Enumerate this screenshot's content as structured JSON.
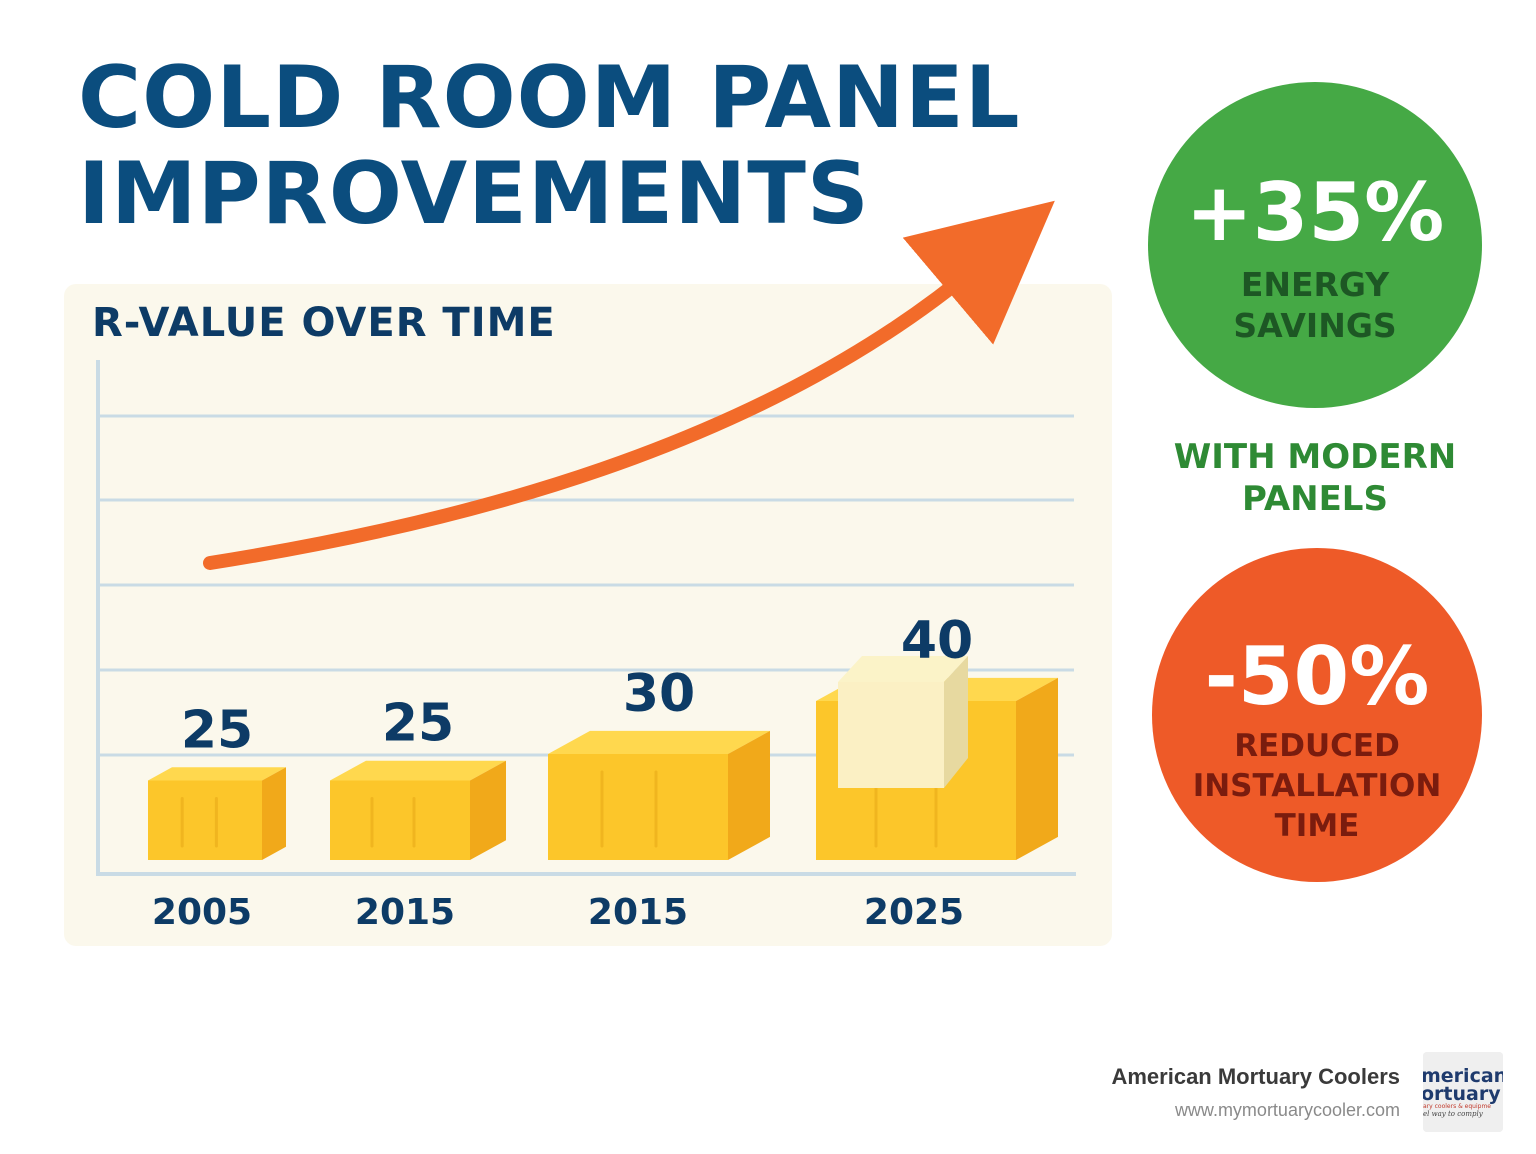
{
  "header": {
    "title_line1": "COLD ROOM PANEL",
    "title_line2": "IMPROVEMENTS"
  },
  "chart_data": {
    "type": "bar",
    "title": "R-VALUE OVER TIME",
    "categories": [
      "2005",
      "2015",
      "2015",
      "2025"
    ],
    "values": [
      25,
      25,
      30,
      40
    ],
    "data_labels": [
      "25",
      "25",
      "30",
      "40"
    ],
    "xlabel": "",
    "ylabel": "",
    "grid": true,
    "trend_arrow": "upward",
    "colors": {
      "bar": "#fcc62a",
      "bar_side": "#f1a91a",
      "bar_top": "#ffd84e",
      "arrow": "#f26b2a",
      "label": "#0d3b66"
    }
  },
  "stats": {
    "energy": {
      "value": "+35%",
      "line1": "ENERGY",
      "line2": "SAVINGS"
    },
    "note": {
      "line1": "WITH MODERN",
      "line2": "PANELS"
    },
    "installation": {
      "value": "-50%",
      "line1": "REDUCED",
      "line2": "INSTALLATION",
      "line3": "TIME"
    }
  },
  "brand": {
    "name": "American Mortuary Coolers",
    "url": "www.mymortuarycooler.com",
    "logo": {
      "line1": "merican",
      "line2": "ortuary",
      "line3": "ary coolers & equipme",
      "line4": "el way to comply"
    }
  },
  "colors": {
    "title": "#0b4d7e",
    "green": "#45a945",
    "red": "#ee5a28",
    "panel_bg": "#fbf8ec"
  }
}
